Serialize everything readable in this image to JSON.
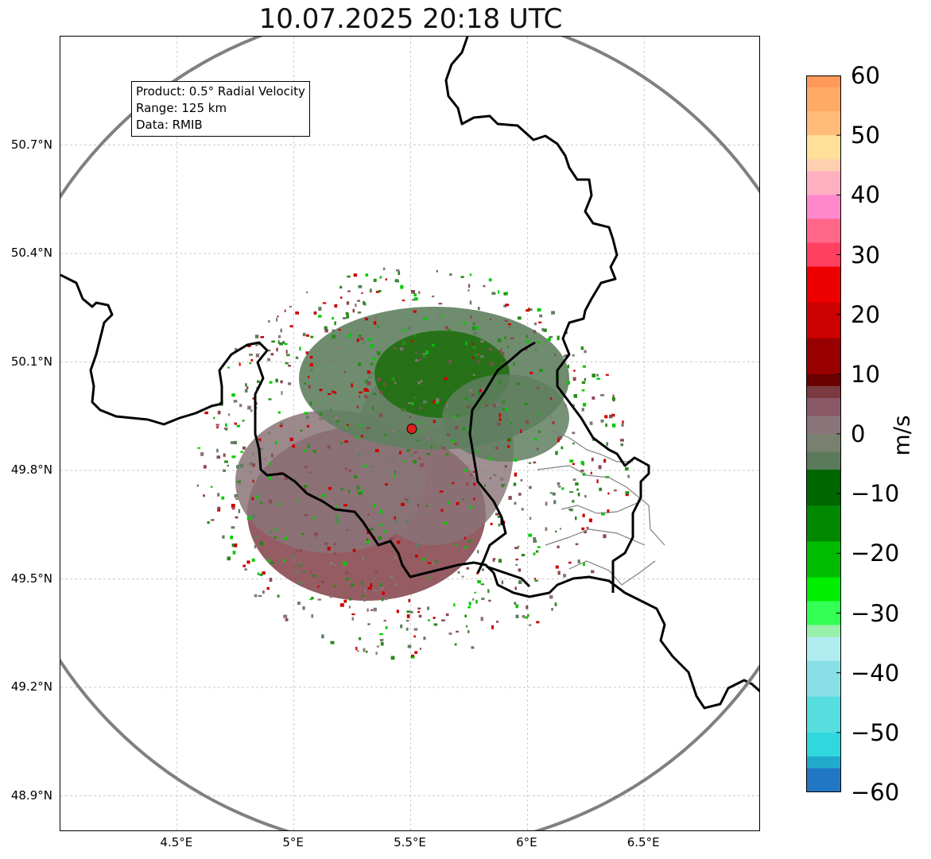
{
  "map": {
    "title": "10.07.2025 20:18 UTC",
    "info": {
      "product": "Product: 0.5° Radial Velocity",
      "range": "Range: 125 km",
      "source": "Data: RMIB"
    },
    "extent": {
      "lon": [
        4.0,
        7.0
      ],
      "lat": [
        48.8,
        51.0
      ]
    },
    "radar_site": {
      "lon": 5.505,
      "lat": 49.915,
      "marker_color": "#e02020"
    },
    "range_ring_color": "#808080",
    "lat_ticks": [
      {
        "value": 50.7,
        "label": "50.7°N"
      },
      {
        "value": 50.4,
        "label": "50.4°N"
      },
      {
        "value": 50.1,
        "label": "50.1°N"
      },
      {
        "value": 49.8,
        "label": "49.8°N"
      },
      {
        "value": 49.5,
        "label": "49.5°N"
      },
      {
        "value": 49.2,
        "label": "49.2°N"
      },
      {
        "value": 48.9,
        "label": "48.9°N"
      }
    ],
    "lon_ticks": [
      {
        "value": 4.5,
        "label": "4.5°E"
      },
      {
        "value": 5.0,
        "label": "5°E"
      },
      {
        "value": 5.5,
        "label": "5.5°E"
      },
      {
        "value": 6.0,
        "label": "6°E"
      },
      {
        "value": 6.5,
        "label": "6.5°E"
      }
    ],
    "echo_colors": {
      "receding": "#8a4a52",
      "near_zero": "#8a7478",
      "approaching": "#5f7f5f",
      "strong_approaching": "#1f6f10"
    }
  },
  "colorbar": {
    "unit": "m/s",
    "min": -60,
    "max": 60,
    "ticks": [
      {
        "value": 60,
        "label": "60"
      },
      {
        "value": 50,
        "label": "50"
      },
      {
        "value": 40,
        "label": "40"
      },
      {
        "value": 30,
        "label": "30"
      },
      {
        "value": 20,
        "label": "20"
      },
      {
        "value": 10,
        "label": "10"
      },
      {
        "value": 0,
        "label": "0"
      },
      {
        "value": -10,
        "label": "−10"
      },
      {
        "value": -20,
        "label": "−20"
      },
      {
        "value": -30,
        "label": "−30"
      },
      {
        "value": -40,
        "label": "−40"
      },
      {
        "value": -50,
        "label": "−50"
      },
      {
        "value": -60,
        "label": "−60"
      }
    ],
    "stops": [
      {
        "from": 58,
        "to": 60,
        "color": "#ff9a5a"
      },
      {
        "from": 54,
        "to": 58,
        "color": "#ffaa66"
      },
      {
        "from": 50,
        "to": 54,
        "color": "#ffbb77"
      },
      {
        "from": 46,
        "to": 50,
        "color": "#ffe099"
      },
      {
        "from": 44,
        "to": 46,
        "color": "#ffd0b0"
      },
      {
        "from": 40,
        "to": 44,
        "color": "#ffb0c0"
      },
      {
        "from": 36,
        "to": 40,
        "color": "#ff88cc"
      },
      {
        "from": 32,
        "to": 36,
        "color": "#ff6688"
      },
      {
        "from": 28,
        "to": 32,
        "color": "#ff4060"
      },
      {
        "from": 22,
        "to": 28,
        "color": "#ee0000"
      },
      {
        "from": 16,
        "to": 22,
        "color": "#cc0000"
      },
      {
        "from": 10,
        "to": 16,
        "color": "#990000"
      },
      {
        "from": 8,
        "to": 10,
        "color": "#6a0000"
      },
      {
        "from": 6,
        "to": 8,
        "color": "#7a3a40"
      },
      {
        "from": 3,
        "to": 6,
        "color": "#8a5866"
      },
      {
        "from": 0,
        "to": 3,
        "color": "#8a747a"
      },
      {
        "from": -3,
        "to": 0,
        "color": "#7a8070"
      },
      {
        "from": -6,
        "to": -3,
        "color": "#5a7a5a"
      },
      {
        "from": -12,
        "to": -6,
        "color": "#006600"
      },
      {
        "from": -18,
        "to": -12,
        "color": "#008800"
      },
      {
        "from": -24,
        "to": -18,
        "color": "#00bb00"
      },
      {
        "from": -28,
        "to": -24,
        "color": "#00ee00"
      },
      {
        "from": -32,
        "to": -28,
        "color": "#33ff55"
      },
      {
        "from": -34,
        "to": -32,
        "color": "#99f0aa"
      },
      {
        "from": -38,
        "to": -34,
        "color": "#b0ecf0"
      },
      {
        "from": -44,
        "to": -38,
        "color": "#88e0e6"
      },
      {
        "from": -50,
        "to": -44,
        "color": "#55dde0"
      },
      {
        "from": -54,
        "to": -50,
        "color": "#30d8dd"
      },
      {
        "from": -56,
        "to": -54,
        "color": "#22aacc"
      },
      {
        "from": -60,
        "to": -56,
        "color": "#2277c4"
      }
    ]
  }
}
